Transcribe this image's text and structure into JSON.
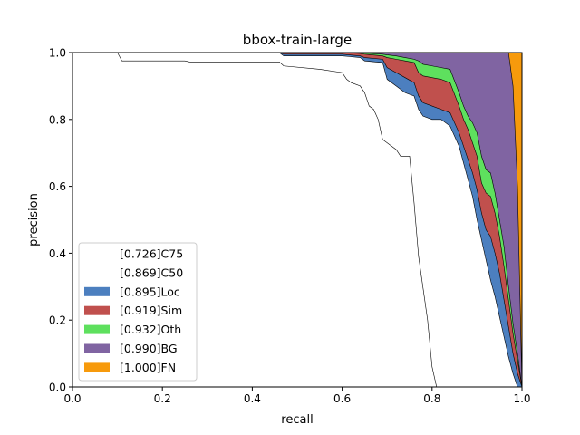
{
  "chart_data": {
    "type": "area",
    "title": "bbox-train-large",
    "xlabel": "recall",
    "ylabel": "precision",
    "xlim": [
      0,
      1
    ],
    "ylim": [
      0,
      1
    ],
    "xticks": [
      "0.0",
      "0.2",
      "0.4",
      "0.6",
      "0.8",
      "1.0"
    ],
    "yticks": [
      "0.0",
      "0.2",
      "0.4",
      "0.6",
      "0.8",
      "1.0"
    ],
    "legend_position": "lower-left",
    "grid": false,
    "series": [
      {
        "name": "[0.726]C75",
        "color": "#ffffff",
        "points": [
          [
            0,
            1
          ],
          [
            0.1,
            1
          ],
          [
            0.11,
            0.975
          ],
          [
            0.25,
            0.975
          ],
          [
            0.26,
            0.972
          ],
          [
            0.46,
            0.972
          ],
          [
            0.47,
            0.96
          ],
          [
            0.55,
            0.95
          ],
          [
            0.6,
            0.94
          ],
          [
            0.61,
            0.92
          ],
          [
            0.62,
            0.91
          ],
          [
            0.64,
            0.9
          ],
          [
            0.65,
            0.88
          ],
          [
            0.66,
            0.84
          ],
          [
            0.67,
            0.83
          ],
          [
            0.68,
            0.8
          ],
          [
            0.69,
            0.74
          ],
          [
            0.72,
            0.71
          ],
          [
            0.73,
            0.69
          ],
          [
            0.75,
            0.69
          ],
          [
            0.76,
            0.55
          ],
          [
            0.77,
            0.39
          ],
          [
            0.79,
            0.2
          ],
          [
            0.8,
            0.06
          ],
          [
            0.81,
            0
          ],
          [
            1,
            0
          ]
        ]
      },
      {
        "name": "[0.869]C50",
        "color": "#ffffff",
        "points": [
          [
            0,
            1
          ],
          [
            0.46,
            1
          ],
          [
            0.47,
            0.99
          ],
          [
            0.6,
            0.99
          ],
          [
            0.64,
            0.985
          ],
          [
            0.65,
            0.975
          ],
          [
            0.69,
            0.97
          ],
          [
            0.7,
            0.92
          ],
          [
            0.72,
            0.9
          ],
          [
            0.74,
            0.88
          ],
          [
            0.76,
            0.87
          ],
          [
            0.77,
            0.83
          ],
          [
            0.78,
            0.81
          ],
          [
            0.8,
            0.8
          ],
          [
            0.82,
            0.8
          ],
          [
            0.84,
            0.78
          ],
          [
            0.86,
            0.72
          ],
          [
            0.87,
            0.67
          ],
          [
            0.88,
            0.62
          ],
          [
            0.89,
            0.57
          ],
          [
            0.9,
            0.5
          ],
          [
            0.91,
            0.44
          ],
          [
            0.92,
            0.38
          ],
          [
            0.93,
            0.32
          ],
          [
            0.94,
            0.27
          ],
          [
            0.95,
            0.21
          ],
          [
            0.96,
            0.15
          ],
          [
            0.97,
            0.09
          ],
          [
            0.98,
            0.04
          ],
          [
            0.99,
            0
          ],
          [
            1,
            0
          ]
        ]
      },
      {
        "name": "[0.895]Loc",
        "color": "#4c7fbf",
        "points": [
          [
            0,
            1
          ],
          [
            0.46,
            1
          ],
          [
            0.47,
            0.995
          ],
          [
            0.6,
            0.995
          ],
          [
            0.64,
            0.99
          ],
          [
            0.65,
            0.985
          ],
          [
            0.69,
            0.98
          ],
          [
            0.7,
            0.955
          ],
          [
            0.72,
            0.94
          ],
          [
            0.74,
            0.925
          ],
          [
            0.76,
            0.91
          ],
          [
            0.77,
            0.87
          ],
          [
            0.78,
            0.85
          ],
          [
            0.8,
            0.84
          ],
          [
            0.82,
            0.83
          ],
          [
            0.84,
            0.82
          ],
          [
            0.86,
            0.76
          ],
          [
            0.87,
            0.72
          ],
          [
            0.88,
            0.68
          ],
          [
            0.89,
            0.64
          ],
          [
            0.9,
            0.59
          ],
          [
            0.91,
            0.52
          ],
          [
            0.92,
            0.47
          ],
          [
            0.93,
            0.45
          ],
          [
            0.94,
            0.4
          ],
          [
            0.95,
            0.34
          ],
          [
            0.96,
            0.26
          ],
          [
            0.97,
            0.18
          ],
          [
            0.98,
            0.1
          ],
          [
            0.99,
            0.04
          ],
          [
            1,
            0
          ]
        ]
      },
      {
        "name": "[0.919]Sim",
        "color": "#c0504d",
        "points": [
          [
            0,
            1
          ],
          [
            0.46,
            1
          ],
          [
            0.6,
            1
          ],
          [
            0.64,
            0.997
          ],
          [
            0.65,
            0.995
          ],
          [
            0.69,
            0.99
          ],
          [
            0.7,
            0.985
          ],
          [
            0.72,
            0.98
          ],
          [
            0.74,
            0.975
          ],
          [
            0.76,
            0.97
          ],
          [
            0.77,
            0.94
          ],
          [
            0.78,
            0.93
          ],
          [
            0.8,
            0.925
          ],
          [
            0.82,
            0.92
          ],
          [
            0.84,
            0.91
          ],
          [
            0.86,
            0.84
          ],
          [
            0.87,
            0.8
          ],
          [
            0.88,
            0.77
          ],
          [
            0.89,
            0.73
          ],
          [
            0.9,
            0.69
          ],
          [
            0.91,
            0.61
          ],
          [
            0.92,
            0.58
          ],
          [
            0.93,
            0.57
          ],
          [
            0.94,
            0.52
          ],
          [
            0.95,
            0.45
          ],
          [
            0.96,
            0.36
          ],
          [
            0.97,
            0.26
          ],
          [
            0.98,
            0.16
          ],
          [
            0.99,
            0.08
          ],
          [
            1,
            0
          ]
        ]
      },
      {
        "name": "[0.932]Oth",
        "color": "#5ee05e",
        "points": [
          [
            0,
            1
          ],
          [
            0.46,
            1
          ],
          [
            0.64,
            1
          ],
          [
            0.65,
            0.998
          ],
          [
            0.69,
            0.995
          ],
          [
            0.7,
            0.993
          ],
          [
            0.72,
            0.99
          ],
          [
            0.74,
            0.985
          ],
          [
            0.76,
            0.98
          ],
          [
            0.77,
            0.975
          ],
          [
            0.78,
            0.965
          ],
          [
            0.8,
            0.96
          ],
          [
            0.82,
            0.955
          ],
          [
            0.84,
            0.95
          ],
          [
            0.86,
            0.88
          ],
          [
            0.87,
            0.84
          ],
          [
            0.88,
            0.81
          ],
          [
            0.89,
            0.79
          ],
          [
            0.9,
            0.76
          ],
          [
            0.91,
            0.69
          ],
          [
            0.92,
            0.65
          ],
          [
            0.93,
            0.64
          ],
          [
            0.94,
            0.58
          ],
          [
            0.95,
            0.5
          ],
          [
            0.96,
            0.42
          ],
          [
            0.97,
            0.3
          ],
          [
            0.98,
            0.19
          ],
          [
            0.99,
            0.1
          ],
          [
            1,
            0
          ]
        ]
      },
      {
        "name": "[0.990]BG",
        "color": "#8064a2",
        "points": [
          [
            0,
            1
          ],
          [
            0.97,
            1
          ],
          [
            0.98,
            0.9
          ],
          [
            0.99,
            0.6
          ],
          [
            0.995,
            0.3
          ],
          [
            1,
            0
          ]
        ]
      },
      {
        "name": "[1.000]FN",
        "color": "#f79a0c",
        "points": [
          [
            0,
            1
          ],
          [
            1,
            1
          ],
          [
            1,
            0
          ]
        ]
      }
    ]
  }
}
